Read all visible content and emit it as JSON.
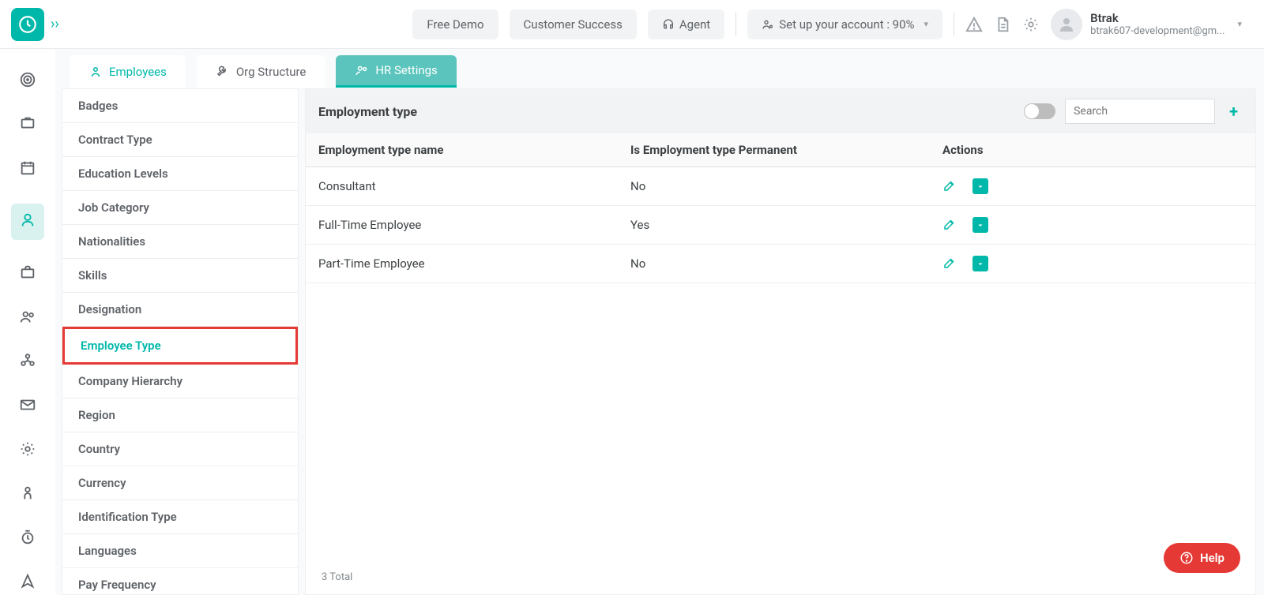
{
  "colors": {
    "accent": "#00b8a9",
    "accent_light": "#5bc5bd",
    "highlight_border": "#e53935",
    "help_bg": "#e53935",
    "text_primary": "#3c4043",
    "text_secondary": "#5f6368",
    "text_muted": "#80868b",
    "bg_page": "#f8fafb",
    "bg_pill": "#f1f3f4",
    "border": "#e8eaed"
  },
  "header": {
    "buttons": {
      "free_demo": "Free Demo",
      "customer_success": "Customer Success",
      "agent": "Agent",
      "setup": "Set up your account : 90%"
    },
    "user": {
      "name": "Btrak",
      "email": "btrak607-development@gm..."
    }
  },
  "tabs": [
    {
      "label": "Employees",
      "active": false
    },
    {
      "label": "Org Structure",
      "active": false
    },
    {
      "label": "HR Settings",
      "active": true
    }
  ],
  "settings_menu": [
    "Badges",
    "Contract Type",
    "Education Levels",
    "Job Category",
    "Nationalities",
    "Skills",
    "Designation",
    "Employee Type",
    "Company Hierarchy",
    "Region",
    "Country",
    "Currency",
    "Identification Type",
    "Languages",
    "Pay Frequency"
  ],
  "settings_selected": "Employee Type",
  "panel": {
    "title": "Employment type",
    "search_placeholder": "Search",
    "columns": [
      "Employment type name",
      "Is Employment type Permanent",
      "Actions"
    ],
    "rows": [
      {
        "name": "Consultant",
        "permanent": "No"
      },
      {
        "name": "Full-Time Employee",
        "permanent": "Yes"
      },
      {
        "name": "Part-Time Employee",
        "permanent": "No"
      }
    ],
    "footer": "3 Total"
  },
  "help_label": "Help"
}
